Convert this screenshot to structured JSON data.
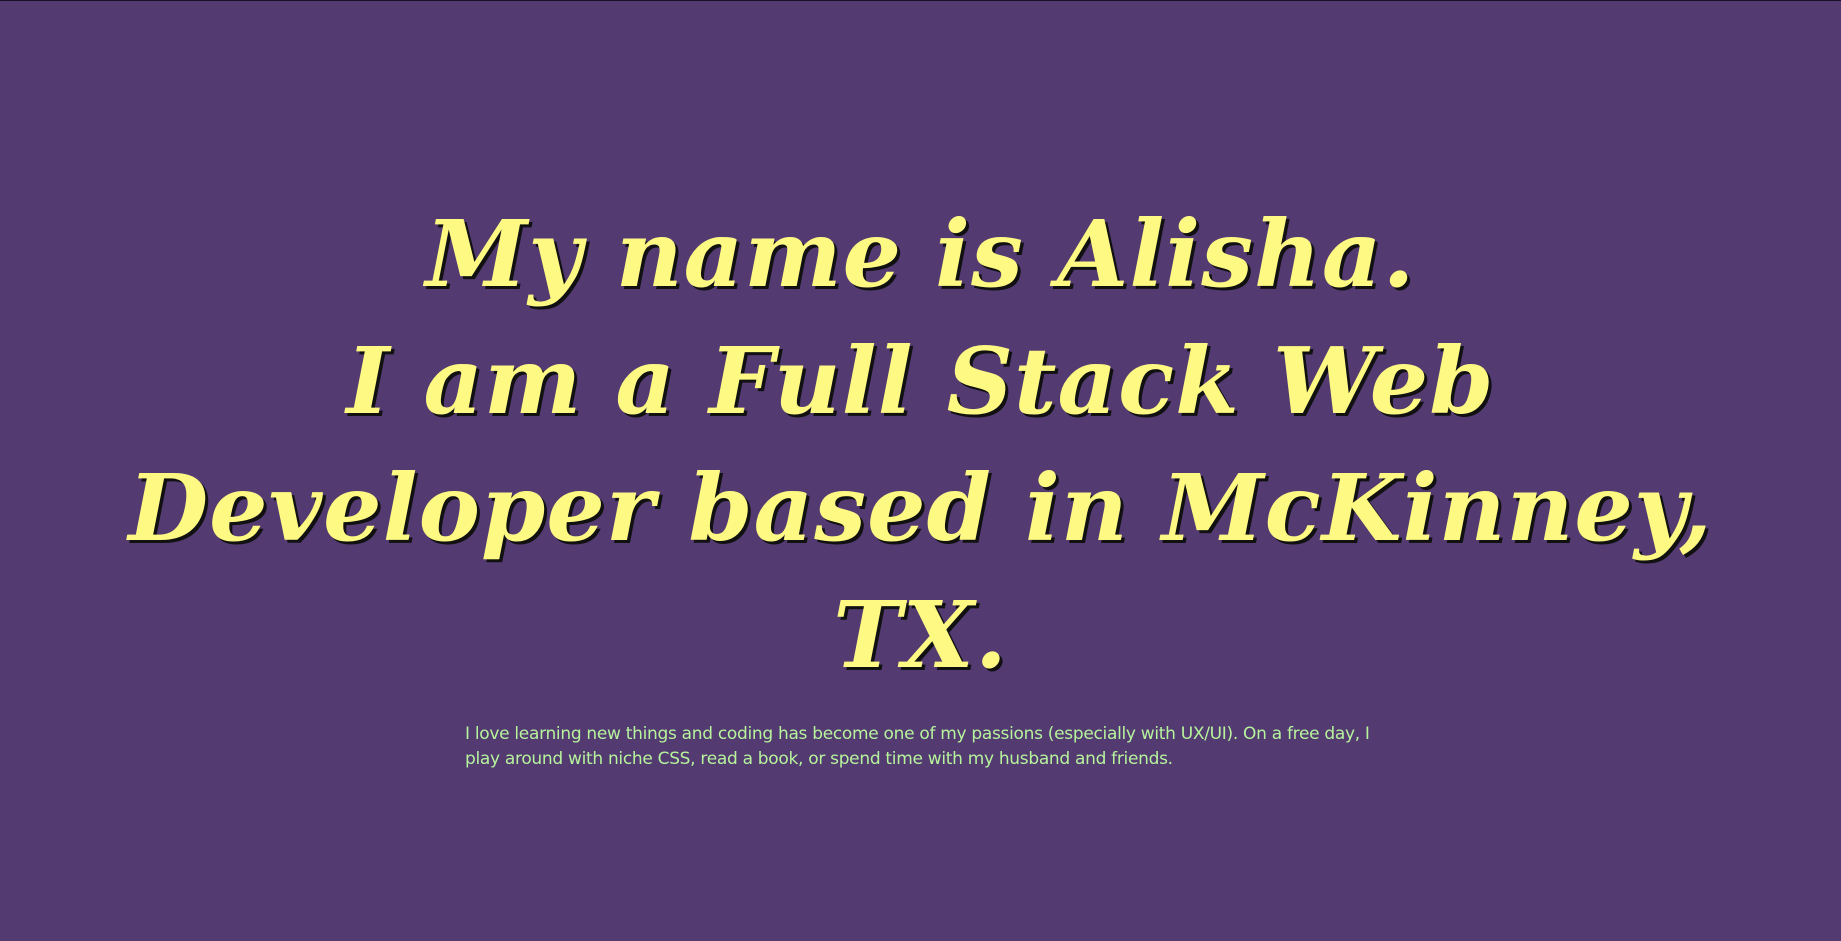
{
  "hero": {
    "line1": "My name is Alisha.",
    "line2": "I am a Full Stack Web",
    "line3": "Developer based in McKinney,",
    "line4": "TX."
  },
  "about": {
    "text": "I love learning new things and coding has become one of my passions (especially with UX/UI). On a free day, I play around with niche CSS, read a book, or spend time with my husband and friends."
  },
  "colors": {
    "background": "#533a71",
    "headline": "#fdf982",
    "body_text": "#b6f39c"
  }
}
